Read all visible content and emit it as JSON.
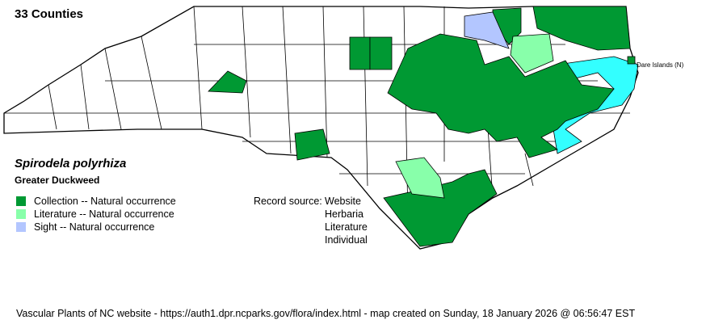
{
  "county_count_label": "33 Counties",
  "species": {
    "scientific_name": "Spirodela polyrhiza",
    "common_name": "Greater Duckweed"
  },
  "legend": [
    {
      "label": "Collection -- Natural occurrence",
      "color": "#009933"
    },
    {
      "label": "Literature -- Natural occurrence",
      "color": "#88ffaa"
    },
    {
      "label": "Sight -- Natural occurrence",
      "color": "#b3c6ff"
    }
  ],
  "record_source": {
    "label": "Record source:",
    "values": [
      "Website",
      "Herbaria",
      "Literature",
      "Individual"
    ]
  },
  "map": {
    "annotation": "Dare Islands (N)",
    "water_color": "#33ffff"
  },
  "footer": "Vascular Plants of NC website - https://auth1.dpr.ncparks.gov/flora/index.html - map created on Sunday, 18 January 2026 @ 06:56:47 EST"
}
